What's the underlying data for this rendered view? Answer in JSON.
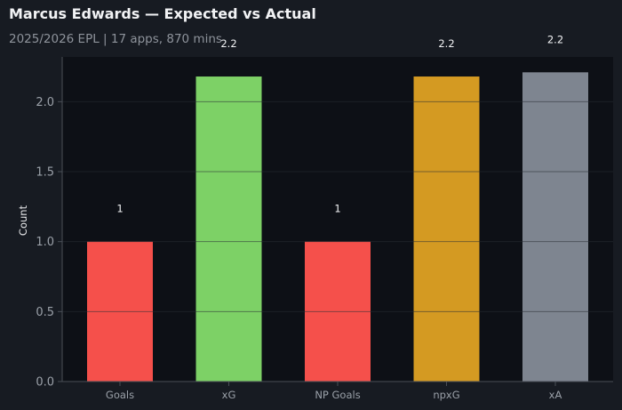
{
  "header": {
    "title": "Marcus Edwards — Expected vs Actual",
    "subtitle": "2025/2026 EPL | 17 apps, 870 mins"
  },
  "chart_data": {
    "type": "bar",
    "title": "Marcus Edwards — Expected vs Actual",
    "subtitle": "2025/2026 EPL | 17 apps, 870 mins",
    "xlabel": "",
    "ylabel": "Count",
    "categories": [
      "Goals",
      "xG",
      "NP Goals",
      "npxG",
      "xA"
    ],
    "values": [
      1,
      2.18,
      1,
      2.18,
      2.21
    ],
    "data_labels": [
      "1",
      "2.2",
      "1",
      "2.2",
      "2.2"
    ],
    "colors": [
      "#f5504b",
      "#7dd166",
      "#f5504b",
      "#d49a22",
      "#7e8590"
    ],
    "ylim": [
      0,
      2.32
    ],
    "yticks": [
      0.0,
      0.5,
      1.0,
      1.5,
      2.0
    ],
    "ytick_labels": [
      "0.0",
      "0.5",
      "1.0",
      "1.5",
      "2.0"
    ],
    "grid": true,
    "legend": false,
    "colors_theme": {
      "figure_bg": "#171b22",
      "axes_bg": "#0d1016",
      "grid": "#2a2e35",
      "spine": "#4a4f57"
    }
  }
}
